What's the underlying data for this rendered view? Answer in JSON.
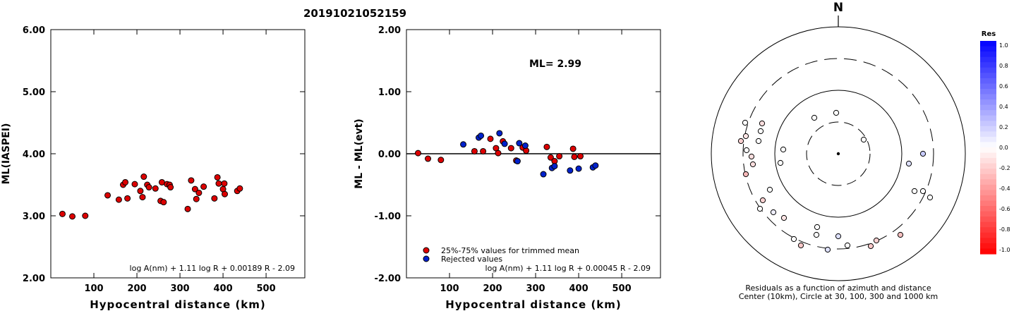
{
  "title": "20191021052159",
  "chart_data": [
    {
      "type": "scatter",
      "ylabel": "ML(IASPEI)",
      "xlabel": "Hypocentral distance (km)",
      "xlim": [
        0,
        590
      ],
      "ylim": [
        2.0,
        6.0
      ],
      "xticks": [
        100,
        200,
        300,
        400,
        500
      ],
      "yticks": [
        "2.00",
        "3.00",
        "4.00",
        "5.00",
        "6.00"
      ],
      "formula": "log A(nm) + 1.11 log R + 0.00189 R - 2.09",
      "point_color": "#dd0000",
      "points": [
        [
          27,
          3.03
        ],
        [
          50,
          2.99
        ],
        [
          80,
          3.0
        ],
        [
          132,
          3.33
        ],
        [
          158,
          3.26
        ],
        [
          168,
          3.5
        ],
        [
          173,
          3.54
        ],
        [
          178,
          3.28
        ],
        [
          195,
          3.51
        ],
        [
          208,
          3.4
        ],
        [
          213,
          3.3
        ],
        [
          216,
          3.63
        ],
        [
          224,
          3.5
        ],
        [
          228,
          3.46
        ],
        [
          243,
          3.44
        ],
        [
          255,
          3.24
        ],
        [
          258,
          3.54
        ],
        [
          262,
          3.22
        ],
        [
          270,
          3.51
        ],
        [
          276,
          3.5
        ],
        [
          278,
          3.46
        ],
        [
          318,
          3.11
        ],
        [
          326,
          3.57
        ],
        [
          335,
          3.43
        ],
        [
          338,
          3.27
        ],
        [
          344,
          3.37
        ],
        [
          355,
          3.47
        ],
        [
          380,
          3.28
        ],
        [
          387,
          3.62
        ],
        [
          390,
          3.52
        ],
        [
          400,
          3.43
        ],
        [
          403,
          3.52
        ],
        [
          404,
          3.35
        ],
        [
          433,
          3.4
        ],
        [
          439,
          3.44
        ]
      ]
    },
    {
      "type": "scatter",
      "ylabel": "ML - ML(evt)",
      "xlabel": "Hypocentral distance (km)",
      "xlim": [
        0,
        590
      ],
      "ylim": [
        -2.0,
        2.0
      ],
      "xticks": [
        100,
        200,
        300,
        400,
        500
      ],
      "yticks": [
        "-2.00",
        "-1.00",
        "0.00",
        "1.00",
        "2.00"
      ],
      "annotation": "ML= 2.99",
      "formula": "log A(nm) + 1.11 log R + 0.00045 R - 2.09",
      "legend": [
        {
          "label": "25%-75% values for trimmed mean",
          "color": "#dd0000"
        },
        {
          "label": "Rejected values",
          "color": "#0022cc"
        }
      ],
      "series": [
        {
          "color": "#dd0000",
          "points": [
            [
              27,
              0.01
            ],
            [
              50,
              -0.08
            ],
            [
              80,
              -0.1
            ],
            [
              158,
              0.04
            ],
            [
              178,
              0.04
            ],
            [
              195,
              0.24
            ],
            [
              208,
              0.09
            ],
            [
              213,
              0.01
            ],
            [
              224,
              0.2
            ],
            [
              243,
              0.09
            ],
            [
              255,
              -0.11
            ],
            [
              270,
              0.1
            ],
            [
              278,
              0.05
            ],
            [
              326,
              0.11
            ],
            [
              335,
              -0.06
            ],
            [
              344,
              -0.12
            ],
            [
              355,
              -0.04
            ],
            [
              387,
              0.08
            ],
            [
              390,
              -0.05
            ],
            [
              404,
              -0.04
            ]
          ]
        },
        {
          "color": "#0022cc",
          "points": [
            [
              132,
              0.15
            ],
            [
              168,
              0.26
            ],
            [
              173,
              0.29
            ],
            [
              216,
              0.33
            ],
            [
              228,
              0.16
            ],
            [
              258,
              -0.12
            ],
            [
              262,
              0.17
            ],
            [
              276,
              0.13
            ],
            [
              318,
              -0.33
            ],
            [
              338,
              -0.23
            ],
            [
              344,
              -0.2
            ],
            [
              380,
              -0.27
            ],
            [
              400,
              -0.24
            ],
            [
              433,
              -0.22
            ],
            [
              439,
              -0.19
            ]
          ]
        }
      ]
    },
    {
      "type": "polar",
      "north_label": "N",
      "caption_line1": "Residuals as a function of azimuth and distance",
      "caption_line2": "Center (10km), Circle at 30, 100, 300 and 1000 km",
      "colorbar_title": "Res",
      "colorbar_ticks": [
        "1.0",
        "0.8",
        "0.6",
        "0.4",
        "0.2",
        "0.0",
        "-0.2",
        "-0.4",
        "-0.6",
        "-0.8",
        "-1.0"
      ],
      "stations": [
        [
          -34,
          -51,
          "#ffffff"
        ],
        [
          -132,
          -44,
          "#ffffff"
        ],
        [
          -3,
          -58,
          "#ffffff"
        ],
        [
          -82,
          13,
          "#ffffff"
        ],
        [
          -108,
          -43,
          "#fcdede"
        ],
        [
          -131,
          -25,
          "#fde6e6"
        ],
        [
          -110,
          -32,
          "#ffffff"
        ],
        [
          -113,
          -18,
          "#ffffff"
        ],
        [
          -78,
          -6,
          "#ffffff"
        ],
        [
          -138,
          -18,
          "#fad0d0"
        ],
        [
          -130,
          -5,
          "#ffffff"
        ],
        [
          -123,
          4,
          "#fcdede"
        ],
        [
          -121,
          15,
          "#fcdede"
        ],
        [
          -131,
          29,
          "#f6b8b8"
        ],
        [
          -97,
          51,
          "#ffffff"
        ],
        [
          -107,
          66,
          "#fad0d0"
        ],
        [
          -111,
          78,
          "#ffffff"
        ],
        [
          -92,
          83,
          "#eeeeff"
        ],
        [
          -77,
          91,
          "#fde6e6"
        ],
        [
          -53,
          130,
          "#f9c8c8"
        ],
        [
          -63,
          121,
          "#ffffff"
        ],
        [
          -30,
          104,
          "#ffffff"
        ],
        [
          -31,
          115,
          "#ffffff"
        ],
        [
          0,
          117,
          "#dde0ff"
        ],
        [
          -15,
          136,
          "#dde0ff"
        ],
        [
          13,
          130,
          "#ffffff"
        ],
        [
          54,
          123,
          "#fad0d0"
        ],
        [
          46,
          131,
          "#f9c8c8"
        ],
        [
          88,
          115,
          "#f8c0c0"
        ],
        [
          108,
          53,
          "#ffffff"
        ],
        [
          120,
          53,
          "#ffffff"
        ],
        [
          130,
          62,
          "#ffffff"
        ],
        [
          100,
          14,
          "#dde0ff"
        ],
        [
          120,
          0,
          "#c8ccff"
        ],
        [
          36,
          -20,
          "#ffffff"
        ]
      ]
    }
  ]
}
